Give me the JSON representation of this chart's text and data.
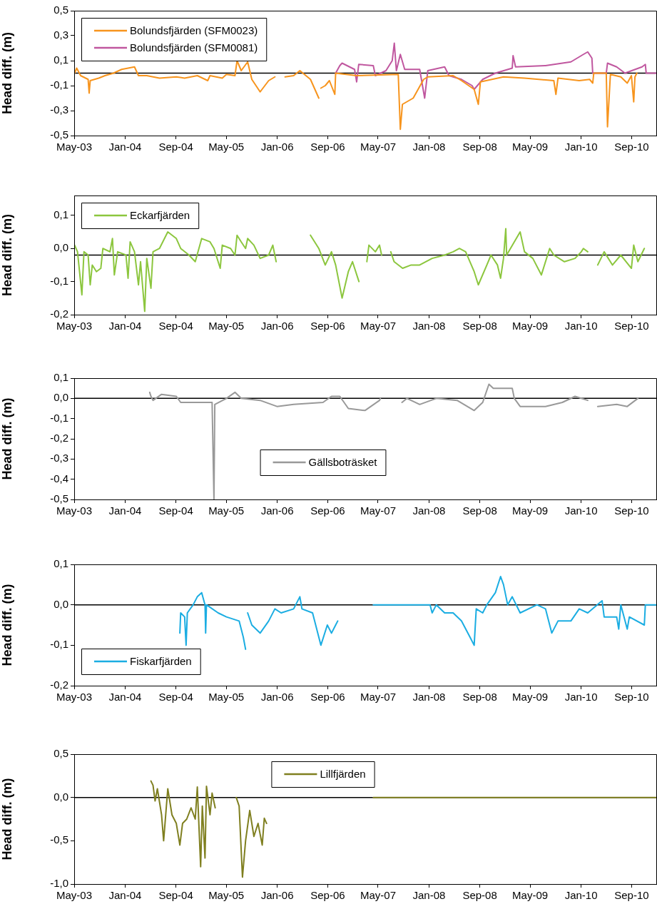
{
  "chart_data": [
    {
      "type": "line",
      "ylabel": "Head diff. (m)",
      "legend": "top left",
      "xlim": [
        "2003-05-01",
        "2011-01-01"
      ],
      "xticks": [
        {
          "value": "2003-05-01",
          "label": "May-03"
        },
        {
          "value": "2004-01-01",
          "label": "Jan-04"
        },
        {
          "value": "2004-09-01",
          "label": "Sep-04"
        },
        {
          "value": "2005-05-01",
          "label": "May-05"
        },
        {
          "value": "2006-01-01",
          "label": "Jan-06"
        },
        {
          "value": "2006-09-01",
          "label": "Sep-06"
        },
        {
          "value": "2007-05-01",
          "label": "May-07"
        },
        {
          "value": "2008-01-01",
          "label": "Jan-08"
        },
        {
          "value": "2008-09-01",
          "label": "Sep-08"
        },
        {
          "value": "2009-05-01",
          "label": "May-09"
        },
        {
          "value": "2010-01-01",
          "label": "Jan-10"
        },
        {
          "value": "2010-09-01",
          "label": "Sep-10"
        }
      ],
      "ylim": [
        -0.5,
        0.5
      ],
      "yticks": [
        {
          "value": -0.5,
          "label": "-0,5"
        },
        {
          "value": -0.3,
          "label": "-0,3"
        },
        {
          "value": -0.1,
          "label": "-0,1"
        },
        {
          "value": 0.1,
          "label": "0,1"
        },
        {
          "value": 0.3,
          "label": "0,3"
        },
        {
          "value": 0.5,
          "label": "0,5"
        }
      ],
      "ref_lines": [
        {
          "axis": "y",
          "value": 0,
          "color": "#000000"
        }
      ],
      "series": [
        {
          "name": "Bolundsfjärden (SFM0023)",
          "color": "#f7941d",
          "x": [
            "2003-05-03",
            "2003-05-13",
            "2003-06-01",
            "2003-07-07",
            "2003-07-12",
            "2003-07-17",
            "2003-08-27",
            "2003-09-26",
            "2003-11-06",
            "2003-12-15",
            "2004-02-15",
            "2004-03-05",
            "2004-04-14",
            "2004-06-14",
            "2004-09-03",
            "2004-10-13",
            "2004-12-13",
            "2005-02-01",
            "2005-02-12",
            "2005-04-12",
            "2005-05-02",
            "2005-06-12",
            "2005-06-22",
            "2005-07-12",
            "2005-08-12",
            "2005-09-01",
            "2005-10-11",
            "2005-11-21",
            "2005-12-21",
            "2006-01-20",
            "2006-02-08",
            "2006-03-21",
            "2006-04-20",
            "2006-06-10",
            "2006-07-20",
            "2006-07-25",
            "2006-07-30",
            "2006-08-20",
            "2006-09-09",
            "2006-10-05",
            "2006-10-09",
            "2007-01-18",
            "2007-08-06",
            "2007-08-16",
            "2007-08-26",
            "2007-10-17",
            "2007-12-06",
            "2007-12-26",
            "2008-04-26",
            "2008-06-05",
            "2008-08-05",
            "2008-08-25",
            "2008-09-04",
            "2008-12-24",
            "2009-04-04",
            "2009-08-23",
            "2009-09-02",
            "2009-09-12",
            "2009-12-23",
            "2010-02-11",
            "2010-02-26",
            "2010-03-03",
            "2010-05-02",
            "2010-05-08",
            "2010-05-22",
            "2010-07-11",
            "2010-08-11",
            "2010-08-31",
            "2010-09-11",
            "2010-09-17",
            "2010-09-26"
          ],
          "values": [
            0.0,
            0.04,
            -0.02,
            -0.05,
            -0.16,
            -0.06,
            -0.04,
            -0.02,
            0.0,
            0.03,
            0.05,
            -0.02,
            -0.02,
            -0.04,
            -0.03,
            -0.04,
            -0.02,
            -0.06,
            -0.02,
            -0.04,
            -0.01,
            -0.02,
            0.1,
            0.02,
            0.09,
            -0.05,
            -0.15,
            -0.06,
            -0.03,
            null,
            -0.03,
            -0.02,
            0.02,
            -0.05,
            -0.2,
            null,
            -0.12,
            -0.1,
            -0.06,
            -0.17,
            0.0,
            -0.02,
            -0.01,
            -0.45,
            -0.25,
            -0.2,
            -0.05,
            -0.03,
            -0.02,
            -0.06,
            -0.13,
            -0.25,
            -0.07,
            -0.03,
            -0.04,
            -0.06,
            -0.17,
            -0.04,
            -0.06,
            -0.05,
            -0.08,
            0.0,
            0.0,
            -0.43,
            -0.01,
            -0.03,
            -0.08,
            -0.02,
            -0.23,
            -0.03,
            0.0
          ]
        },
        {
          "name": "Bolundsfjärden (SFM0081)",
          "color": "#c0579f",
          "x": [
            "2006-10-09",
            "2006-10-29",
            "2006-11-09",
            "2007-01-08",
            "2007-01-18",
            "2007-01-28",
            "2007-04-08",
            "2007-04-18",
            "2007-06-08",
            "2007-07-08",
            "2007-07-18",
            "2007-07-28",
            "2007-08-16",
            "2007-09-06",
            "2007-11-17",
            "2007-12-11",
            "2007-12-26",
            "2008-03-16",
            "2008-04-06",
            "2008-06-05",
            "2008-07-26",
            "2008-08-05",
            "2008-09-15",
            "2008-11-15",
            "2009-02-04",
            "2009-02-08",
            "2009-02-20",
            "2009-07-14",
            "2009-11-13",
            "2010-01-12",
            "2010-02-02",
            "2010-02-22",
            "2010-02-26",
            "2010-05-02",
            "2010-05-08",
            "2010-06-21",
            "2010-07-31",
            "2010-10-21",
            "2010-11-06",
            "2010-11-10",
            "2011-01-01"
          ],
          "values": [
            0.0,
            0.06,
            0.08,
            0.03,
            -0.07,
            0.07,
            0.06,
            -0.02,
            0.02,
            0.1,
            0.24,
            0.02,
            0.15,
            0.03,
            0.03,
            -0.2,
            0.02,
            0.05,
            -0.02,
            -0.05,
            -0.1,
            -0.13,
            -0.05,
            0.0,
            0.04,
            0.14,
            0.05,
            0.06,
            0.09,
            0.15,
            0.17,
            0.12,
            0.0,
            0.0,
            0.08,
            0.05,
            0.0,
            0.05,
            0.07,
            0.0,
            0.0
          ]
        }
      ]
    },
    {
      "type": "line",
      "ylabel": "Head diff. (m)",
      "legend": "top left",
      "xlim": [
        "2003-05-01",
        "2011-01-01"
      ],
      "xticks": [
        {
          "value": "2003-05-01",
          "label": "May-03"
        },
        {
          "value": "2004-01-01",
          "label": "Jan-04"
        },
        {
          "value": "2004-09-01",
          "label": "Sep-04"
        },
        {
          "value": "2005-05-01",
          "label": "May-05"
        },
        {
          "value": "2006-01-01",
          "label": "Jan-06"
        },
        {
          "value": "2006-09-01",
          "label": "Sep-06"
        },
        {
          "value": "2007-05-01",
          "label": "May-07"
        },
        {
          "value": "2008-01-01",
          "label": "Jan-08"
        },
        {
          "value": "2008-09-01",
          "label": "Sep-08"
        },
        {
          "value": "2009-05-01",
          "label": "May-09"
        },
        {
          "value": "2010-01-01",
          "label": "Jan-10"
        },
        {
          "value": "2010-09-01",
          "label": "Sep-10"
        }
      ],
      "ylim": [
        -0.2,
        0.16
      ],
      "yticks": [
        {
          "value": -0.2,
          "label": "-0,2"
        },
        {
          "value": -0.1,
          "label": "-0,1"
        },
        {
          "value": 0,
          "label": "0,0"
        },
        {
          "value": 0.1,
          "label": "0,1"
        }
      ],
      "ref_lines": [
        {
          "axis": "y",
          "value": -0.02,
          "color": "#000000"
        }
      ],
      "series": [
        {
          "name": "Eckarfjärden",
          "color": "#8cc63e",
          "x": [
            "2003-05-03",
            "2003-05-17",
            "2003-06-07",
            "2003-06-17",
            "2003-07-07",
            "2003-07-17",
            "2003-07-27",
            "2003-08-16",
            "2003-09-06",
            "2003-09-16",
            "2003-10-20",
            "2003-11-01",
            "2003-11-10",
            "2003-11-26",
            "2004-01-05",
            "2004-01-15",
            "2004-01-25",
            "2004-02-15",
            "2004-03-05",
            "2004-03-15",
            "2004-04-04",
            "2004-04-14",
            "2004-05-04",
            "2004-05-14",
            "2004-06-14",
            "2004-07-24",
            "2004-09-03",
            "2004-09-24",
            "2004-11-03",
            "2004-12-03",
            "2005-01-03",
            "2005-02-12",
            "2005-03-03",
            "2005-04-02",
            "2005-04-12",
            "2005-05-22",
            "2005-06-12",
            "2005-06-22",
            "2005-07-12",
            "2005-08-02",
            "2005-08-12",
            "2005-09-11",
            "2005-10-11",
            "2005-11-21",
            "2005-12-11",
            "2005-12-27",
            "2006-03-01",
            "2006-06-10",
            "2006-07-20",
            "2006-08-20",
            "2006-09-19",
            "2006-10-09",
            "2006-11-09",
            "2006-12-09",
            "2006-12-29",
            "2007-01-29",
            "2007-02-15",
            "2007-03-08",
            "2007-03-18",
            "2007-04-18",
            "2007-05-08",
            "2007-05-18",
            "2007-06-10",
            "2007-07-01",
            "2007-07-17",
            "2007-08-27",
            "2007-10-07",
            "2007-11-17",
            "2008-01-16",
            "2008-03-16",
            "2008-04-26",
            "2008-05-26",
            "2008-06-25",
            "2008-08-05",
            "2008-08-25",
            "2008-10-05",
            "2008-10-25",
            "2008-11-25",
            "2008-12-10",
            "2008-12-24",
            "2009-01-04",
            "2009-01-08",
            "2009-03-14",
            "2009-04-04",
            "2009-05-14",
            "2009-06-24",
            "2009-08-03",
            "2009-08-23",
            "2009-10-13",
            "2009-12-03",
            "2010-01-02",
            "2010-01-12",
            "2010-02-02",
            "2010-03-01",
            "2010-03-22",
            "2010-04-22",
            "2010-06-01",
            "2010-07-11",
            "2010-08-31",
            "2010-09-11",
            "2010-10-01",
            "2010-11-01"
          ],
          "values": [
            0.01,
            -0.01,
            -0.14,
            -0.01,
            -0.02,
            -0.11,
            -0.05,
            -0.07,
            -0.06,
            0.0,
            -0.01,
            0.03,
            -0.08,
            -0.01,
            -0.02,
            -0.09,
            0.02,
            -0.01,
            -0.11,
            -0.04,
            -0.19,
            -0.03,
            -0.12,
            -0.01,
            0.0,
            0.05,
            0.03,
            0.0,
            -0.02,
            -0.04,
            0.03,
            0.02,
            0.0,
            -0.06,
            0.01,
            0.0,
            -0.02,
            0.04,
            0.02,
            0.0,
            0.03,
            0.01,
            -0.03,
            -0.02,
            0.01,
            -0.04,
            null,
            0.04,
            0.0,
            -0.05,
            -0.01,
            -0.05,
            -0.15,
            -0.07,
            -0.04,
            -0.1,
            null,
            -0.04,
            0.01,
            -0.01,
            0.01,
            -0.02,
            null,
            -0.01,
            -0.04,
            -0.06,
            -0.05,
            -0.05,
            -0.03,
            -0.02,
            -0.01,
            0.0,
            -0.01,
            -0.07,
            -0.11,
            -0.05,
            -0.02,
            -0.05,
            -0.09,
            -0.03,
            0.06,
            -0.02,
            0.05,
            -0.01,
            -0.03,
            -0.08,
            0.0,
            -0.02,
            -0.04,
            -0.03,
            -0.01,
            0.0,
            -0.01,
            null,
            -0.05,
            -0.01,
            -0.05,
            -0.02,
            -0.06,
            0.01,
            -0.04,
            0.0
          ]
        }
      ]
    },
    {
      "type": "line",
      "ylabel": "Head diff. (m)",
      "legend": "center",
      "xlim": [
        "2003-05-01",
        "2011-01-01"
      ],
      "xticks": [
        {
          "value": "2003-05-01",
          "label": "May-03"
        },
        {
          "value": "2004-01-01",
          "label": "Jan-04"
        },
        {
          "value": "2004-09-01",
          "label": "Sep-04"
        },
        {
          "value": "2005-05-01",
          "label": "May-05"
        },
        {
          "value": "2006-01-01",
          "label": "Jan-06"
        },
        {
          "value": "2006-09-01",
          "label": "Sep-06"
        },
        {
          "value": "2007-05-01",
          "label": "May-07"
        },
        {
          "value": "2008-01-01",
          "label": "Jan-08"
        },
        {
          "value": "2008-09-01",
          "label": "Sep-08"
        },
        {
          "value": "2009-05-01",
          "label": "May-09"
        },
        {
          "value": "2010-01-01",
          "label": "Jan-10"
        },
        {
          "value": "2010-09-01",
          "label": "Sep-10"
        }
      ],
      "ylim": [
        -0.5,
        0.1
      ],
      "yticks": [
        {
          "value": -0.5,
          "label": "-0,5"
        },
        {
          "value": -0.4,
          "label": "-0,4"
        },
        {
          "value": -0.3,
          "label": "-0,3"
        },
        {
          "value": -0.2,
          "label": "-0,2"
        },
        {
          "value": -0.1,
          "label": "-0,1"
        },
        {
          "value": 0,
          "label": "0,0"
        },
        {
          "value": 0.1,
          "label": "0,1"
        }
      ],
      "ref_lines": [
        {
          "axis": "y",
          "value": 0,
          "color": "#000000"
        }
      ],
      "series": [
        {
          "name": "Gällsboträsket",
          "color": "#999999",
          "x": [
            "2004-04-28",
            "2004-05-04",
            "2004-05-14",
            "2004-06-24",
            "2004-09-03",
            "2004-09-24",
            "2004-12-13",
            "2005-02-22",
            "2005-03-03",
            "2005-03-07",
            "2005-05-02",
            "2005-06-12",
            "2005-07-12",
            "2005-10-11",
            "2005-12-31",
            "2006-03-21",
            "2006-08-09",
            "2006-09-19",
            "2006-10-29",
            "2006-12-09",
            "2007-02-27",
            "2007-05-08",
            "2007-05-12",
            "2007-07-01",
            "2007-08-24",
            "2007-09-17",
            "2007-11-17",
            "2008-02-05",
            "2008-05-15",
            "2008-08-05",
            "2008-09-15",
            "2008-10-15",
            "2008-11-05",
            "2009-02-04",
            "2009-02-14",
            "2009-03-14",
            "2009-07-14",
            "2009-10-03",
            "2009-12-03",
            "2010-02-02",
            "2010-03-01",
            "2010-03-22",
            "2010-06-21",
            "2010-08-11",
            "2010-10-01"
          ],
          "values": [
            0.03,
            0.01,
            -0.01,
            0.02,
            0.01,
            -0.02,
            -0.02,
            -0.02,
            -0.5,
            -0.03,
            0.0,
            0.03,
            0.0,
            -0.01,
            -0.04,
            -0.03,
            -0.02,
            0.01,
            0.01,
            -0.05,
            -0.06,
            -0.01,
            0.0,
            null,
            -0.02,
            0.0,
            -0.03,
            0.0,
            -0.01,
            -0.06,
            -0.02,
            0.07,
            0.05,
            0.05,
            0.0,
            -0.04,
            -0.04,
            -0.02,
            0.01,
            -0.01,
            null,
            -0.04,
            -0.03,
            -0.04,
            0.0
          ]
        }
      ]
    },
    {
      "type": "line",
      "ylabel": "Head diff. (m)",
      "legend": "bottom left",
      "xlim": [
        "2003-05-01",
        "2011-01-01"
      ],
      "xticks": [
        {
          "value": "2003-05-01",
          "label": "May-03"
        },
        {
          "value": "2004-01-01",
          "label": "Jan-04"
        },
        {
          "value": "2004-09-01",
          "label": "Sep-04"
        },
        {
          "value": "2005-05-01",
          "label": "May-05"
        },
        {
          "value": "2006-01-01",
          "label": "Jan-06"
        },
        {
          "value": "2006-09-01",
          "label": "Sep-06"
        },
        {
          "value": "2007-05-01",
          "label": "May-07"
        },
        {
          "value": "2008-01-01",
          "label": "Jan-08"
        },
        {
          "value": "2008-09-01",
          "label": "Sep-08"
        },
        {
          "value": "2009-05-01",
          "label": "May-09"
        },
        {
          "value": "2010-01-01",
          "label": "Jan-10"
        },
        {
          "value": "2010-09-01",
          "label": "Sep-10"
        }
      ],
      "ylim": [
        -0.2,
        0.1
      ],
      "yticks": [
        {
          "value": -0.2,
          "label": "-0,2"
        },
        {
          "value": -0.1,
          "label": "-0,1"
        },
        {
          "value": 0,
          "label": "0,0"
        },
        {
          "value": 0.1,
          "label": "0,1"
        }
      ],
      "ref_lines": [
        {
          "axis": "y",
          "value": 0,
          "color": "#000000"
        }
      ],
      "series": [
        {
          "name": "Fiskarfjärden",
          "color": "#1bade2",
          "x": [
            "2004-09-20",
            "2004-09-24",
            "2004-10-13",
            "2004-10-20",
            "2004-10-26",
            "2004-11-23",
            "2004-12-13",
            "2005-01-03",
            "2005-01-19",
            "2005-01-22",
            "2005-01-26",
            "2005-03-23",
            "2005-05-02",
            "2005-07-02",
            "2005-07-22",
            "2005-08-02",
            "2005-08-07",
            "2005-08-12",
            "2005-09-01",
            "2005-10-11",
            "2005-11-21",
            "2005-12-21",
            "2006-01-20",
            "2006-03-21",
            "2006-04-20",
            "2006-04-30",
            "2006-06-20",
            "2006-07-30",
            "2006-08-30",
            "2006-09-19",
            "2006-10-09",
            "2006-10-19",
            "2007-01-01",
            "2007-04-08",
            "2008-01-06",
            "2008-01-16",
            "2008-02-05",
            "2008-03-16",
            "2008-04-26",
            "2008-06-05",
            "2008-07-16",
            "2008-08-05",
            "2008-08-15",
            "2008-09-15",
            "2008-10-05",
            "2008-11-15",
            "2008-12-10",
            "2008-12-24",
            "2009-01-13",
            "2009-02-04",
            "2009-03-14",
            "2009-06-03",
            "2009-07-14",
            "2009-08-13",
            "2009-09-12",
            "2009-11-13",
            "2009-12-23",
            "2010-02-02",
            "2010-04-12",
            "2010-04-22",
            "2010-06-21",
            "2010-07-01",
            "2010-07-11",
            "2010-08-11",
            "2010-08-21",
            "2010-11-01",
            "2010-11-06",
            "2011-01-01"
          ],
          "values": [
            -0.07,
            -0.02,
            -0.03,
            -0.1,
            -0.02,
            0.0,
            0.02,
            0.03,
            0.0,
            -0.07,
            0.0,
            -0.02,
            -0.03,
            -0.04,
            -0.08,
            -0.11,
            null,
            -0.02,
            -0.05,
            -0.07,
            -0.04,
            -0.01,
            -0.02,
            -0.01,
            0.02,
            -0.01,
            -0.02,
            -0.1,
            -0.05,
            -0.07,
            -0.05,
            -0.04,
            null,
            0.0,
            0.0,
            -0.02,
            0.0,
            -0.02,
            -0.02,
            -0.04,
            -0.08,
            -0.1,
            -0.01,
            -0.02,
            0.0,
            0.03,
            0.07,
            0.05,
            0.0,
            0.02,
            -0.02,
            0.0,
            -0.01,
            -0.07,
            -0.04,
            -0.04,
            -0.01,
            -0.02,
            0.01,
            -0.03,
            -0.03,
            -0.06,
            0.0,
            -0.06,
            -0.03,
            -0.05,
            0.0,
            0.0
          ]
        }
      ]
    },
    {
      "type": "line",
      "ylabel": "Head diff. (m)",
      "legend": "top",
      "xlim": [
        "2003-05-01",
        "2011-01-01"
      ],
      "xticks": [
        {
          "value": "2003-05-01",
          "label": "May-03"
        },
        {
          "value": "2004-01-01",
          "label": "Jan-04"
        },
        {
          "value": "2004-09-01",
          "label": "Sep-04"
        },
        {
          "value": "2005-05-01",
          "label": "May-05"
        },
        {
          "value": "2006-01-01",
          "label": "Jan-06"
        },
        {
          "value": "2006-09-01",
          "label": "Sep-06"
        },
        {
          "value": "2007-05-01",
          "label": "May-07"
        },
        {
          "value": "2008-01-01",
          "label": "Jan-08"
        },
        {
          "value": "2008-09-01",
          "label": "Sep-08"
        },
        {
          "value": "2009-05-01",
          "label": "May-09"
        },
        {
          "value": "2010-01-01",
          "label": "Jan-10"
        },
        {
          "value": "2010-09-01",
          "label": "Sep-10"
        }
      ],
      "ylim": [
        -1,
        0.5
      ],
      "yticks": [
        {
          "value": -1,
          "label": "-1,0"
        },
        {
          "value": -0.5,
          "label": "-0,5"
        },
        {
          "value": 0,
          "label": "0,0"
        },
        {
          "value": 0.5,
          "label": "0,5"
        }
      ],
      "ref_lines": [
        {
          "axis": "y",
          "value": 0,
          "color": "#000000"
        }
      ],
      "series": [
        {
          "name": "Lillfjärden",
          "color": "#7f7f1f",
          "x": [
            "2004-05-04",
            "2004-05-14",
            "2004-05-24",
            "2004-06-04",
            "2004-06-24",
            "2004-07-04",
            "2004-07-14",
            "2004-07-24",
            "2004-08-13",
            "2004-09-03",
            "2004-09-20",
            "2004-10-03",
            "2004-10-23",
            "2004-11-13",
            "2004-12-03",
            "2004-12-13",
            "2004-12-29",
            "2005-01-06",
            "2005-01-19",
            "2005-01-26",
            "2005-02-12",
            "2005-02-22",
            "2005-03-09",
            "2005-05-01",
            "2005-06-18",
            "2005-07-02",
            "2005-07-18",
            "2005-08-02",
            "2005-08-22",
            "2005-09-11",
            "2005-10-01",
            "2005-10-21",
            "2005-10-31",
            "2005-11-11",
            "2006-06-01",
            "2007-04-08",
            "2011-01-01"
          ],
          "values": [
            0.19,
            0.14,
            -0.04,
            0.1,
            -0.2,
            -0.5,
            -0.2,
            0.1,
            -0.2,
            -0.3,
            -0.55,
            -0.3,
            -0.25,
            -0.12,
            -0.25,
            0.12,
            -0.8,
            -0.1,
            -0.7,
            0.13,
            -0.2,
            0.05,
            -0.12,
            null,
            0.0,
            -0.1,
            -0.92,
            -0.5,
            -0.15,
            -0.45,
            -0.3,
            -0.55,
            -0.24,
            -0.3,
            null,
            0.0,
            0.0
          ]
        }
      ]
    }
  ]
}
